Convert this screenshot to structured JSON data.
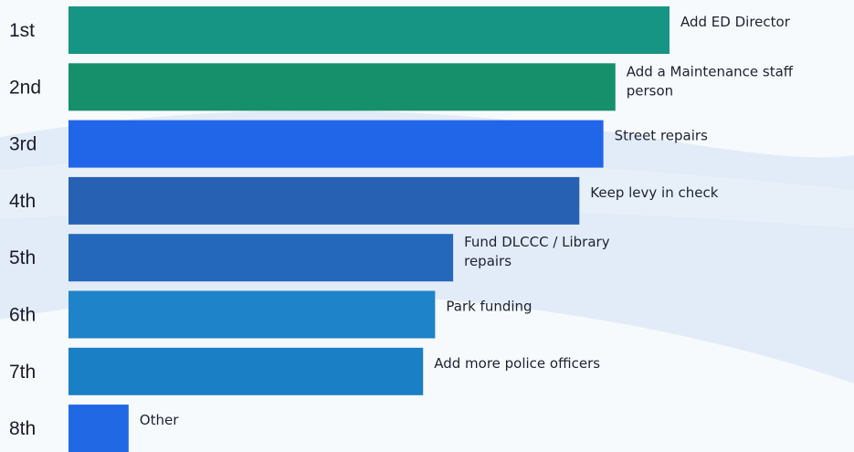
{
  "chart_data": {
    "type": "bar",
    "orientation": "horizontal",
    "categories": [
      "1st",
      "2nd",
      "3rd",
      "4th",
      "5th",
      "6th",
      "7th",
      "8th"
    ],
    "labels": [
      [
        "Add ED Director"
      ],
      [
        "Add a Maintenance staff",
        "person"
      ],
      [
        "Street repairs"
      ],
      [
        "Keep levy in check"
      ],
      [
        "Fund DLCCC / Library",
        "repairs"
      ],
      [
        "Park funding"
      ],
      [
        "Add more police officers"
      ],
      [
        "Other"
      ]
    ],
    "values": [
      100,
      91,
      89,
      85,
      64,
      61,
      59,
      10
    ],
    "colors": [
      "#169484",
      "#16906a",
      "#2166e8",
      "#2761b3",
      "#2368bb",
      "#1f83c9",
      "#1a7fc4",
      "#2168e4"
    ],
    "title": "",
    "xlabel": "",
    "ylabel": "",
    "xlim": [
      0,
      100
    ],
    "grid": false,
    "legend": "none"
  }
}
